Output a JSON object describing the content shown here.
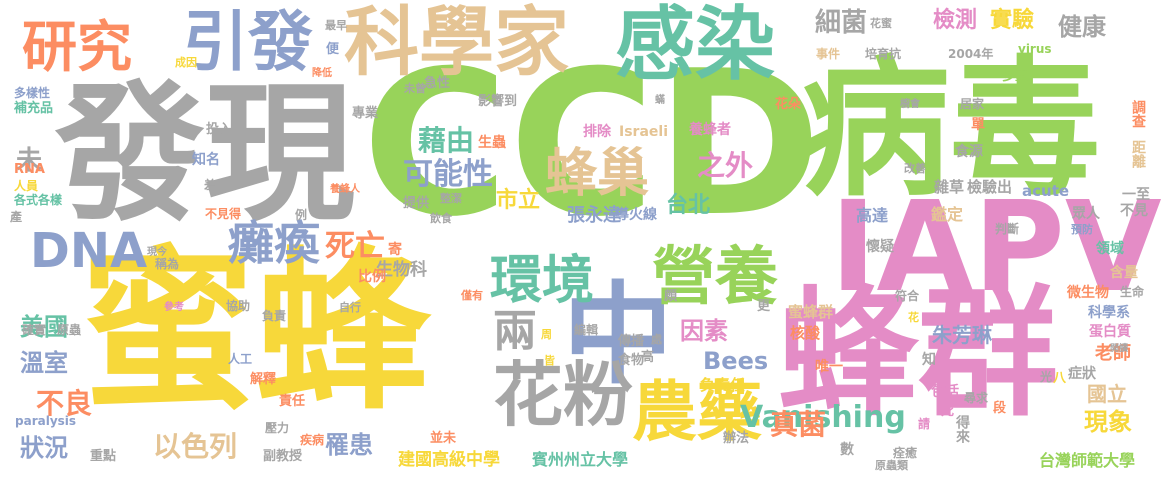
{
  "words": [
    {
      "text": "CCD",
      "color": "#98d35a"
    },
    {
      "text": "蜜蜂",
      "color": "#f7d83a"
    },
    {
      "text": "病毒",
      "color": "#98d35a"
    },
    {
      "text": "發現",
      "color": "#a6a6a6"
    },
    {
      "text": "蜂群",
      "color": "#e48cc6"
    },
    {
      "text": "中",
      "color": "#8da0cb"
    },
    {
      "text": "IAPV",
      "color": "#e48cc6"
    },
    {
      "text": "科學家",
      "color": "#e5c494"
    },
    {
      "text": "感染",
      "color": "#66c2a5"
    },
    {
      "text": "引發",
      "color": "#8da0cb"
    },
    {
      "text": "研究",
      "color": "#fc8d62"
    },
    {
      "text": "花粉",
      "color": "#a6a6a6"
    },
    {
      "text": "農藥",
      "color": "#f7d83a"
    },
    {
      "text": "營養",
      "color": "#98d35a"
    },
    {
      "text": "環境",
      "color": "#66c2a5"
    },
    {
      "text": "蜂巢",
      "color": "#e5c494"
    },
    {
      "text": "DNA",
      "color": "#8da0cb"
    },
    {
      "text": "癱瘓",
      "color": "#8da0cb"
    },
    {
      "text": "兩",
      "color": "#a6a6a6"
    },
    {
      "text": "藉由",
      "color": "#66c2a5"
    },
    {
      "text": "可能性",
      "color": "#8da0cb"
    },
    {
      "text": "之外",
      "color": "#e48cc6"
    },
    {
      "text": "死亡",
      "color": "#fc8d62"
    },
    {
      "text": "因素",
      "color": "#e48cc6"
    },
    {
      "text": "Bees",
      "color": "#8da0cb"
    },
    {
      "text": "Vanishing",
      "color": "#66c2a5"
    },
    {
      "text": "現象",
      "color": "#f7d83a"
    },
    {
      "text": "真菌",
      "color": "#fc8d62"
    },
    {
      "text": "罹患",
      "color": "#8da0cb"
    },
    {
      "text": "以色列",
      "color": "#e5c494"
    },
    {
      "text": "狀況",
      "color": "#8da0cb"
    },
    {
      "text": "不良",
      "color": "#fc8d62"
    },
    {
      "text": "溫室",
      "color": "#8da0cb"
    },
    {
      "text": "美國",
      "color": "#66c2a5"
    },
    {
      "text": "細菌",
      "color": "#a6a6a6"
    },
    {
      "text": "檢測",
      "color": "#e48cc6"
    },
    {
      "text": "實驗",
      "color": "#f7d83a"
    },
    {
      "text": "健康",
      "color": "#a6a6a6"
    },
    {
      "text": "台北",
      "color": "#66c2a5"
    },
    {
      "text": "市立",
      "color": "#f7d83a"
    },
    {
      "text": "張永達",
      "color": "#8da0cb"
    },
    {
      "text": "建國高級中學",
      "color": "#f7d83a"
    },
    {
      "text": "賓州州立大學",
      "color": "#66c2a5"
    },
    {
      "text": "台灣師範大學",
      "color": "#98d35a"
    },
    {
      "text": "朱芳琳",
      "color": "#8da0cb"
    },
    {
      "text": "生物科",
      "color": "#a6a6a6"
    },
    {
      "text": "老師",
      "color": "#fc8d62"
    },
    {
      "text": "國立",
      "color": "#e5c494"
    },
    {
      "text": "未",
      "color": "#a6a6a6"
    },
    {
      "text": "生蟲",
      "color": "#fc8d62"
    },
    {
      "text": "排除",
      "color": "#e48cc6"
    },
    {
      "text": "Israeli",
      "color": "#e5c494"
    },
    {
      "text": "養蜂者",
      "color": "#e48cc6"
    },
    {
      "text": "導火線",
      "color": "#8da0cb"
    },
    {
      "text": "蜜蜂群",
      "color": "#e5c494"
    },
    {
      "text": "核酸",
      "color": "#fc8d62"
    },
    {
      "text": "高達",
      "color": "#8da0cb"
    },
    {
      "text": "鑑定",
      "color": "#e5c494"
    },
    {
      "text": "雜草",
      "color": "#a6a6a6"
    },
    {
      "text": "檢驗出",
      "color": "#a6a6a6"
    },
    {
      "text": "acute",
      "color": "#8da0cb"
    },
    {
      "text": "virus",
      "color": "#98d35a"
    },
    {
      "text": "paralysis",
      "color": "#8da0cb"
    },
    {
      "text": "2004年",
      "color": "#a6a6a6"
    },
    {
      "text": "培育抗",
      "color": "#a6a6a6"
    },
    {
      "text": "花蜜",
      "color": "#a6a6a6"
    },
    {
      "text": "事件",
      "color": "#e5c494"
    },
    {
      "text": "多重",
      "color": "#98d35a"
    },
    {
      "text": "調查",
      "color": "#fc8d62"
    },
    {
      "text": "距離",
      "color": "#e5c494"
    },
    {
      "text": "單",
      "color": "#fc8d62"
    },
    {
      "text": "居家",
      "color": "#a6a6a6"
    },
    {
      "text": "櫥會",
      "color": "#a6a6a6"
    },
    {
      "text": "食源",
      "color": "#a6a6a6"
    },
    {
      "text": "改善",
      "color": "#a6a6a6"
    },
    {
      "text": "一至",
      "color": "#a6a6a6"
    },
    {
      "text": "不見",
      "color": "#a6a6a6"
    },
    {
      "text": "眾人",
      "color": "#a6a6a6"
    },
    {
      "text": "預防",
      "color": "#8da0cb"
    },
    {
      "text": "領域",
      "color": "#66c2a5"
    },
    {
      "text": "含量",
      "color": "#e5c494"
    },
    {
      "text": "微生物",
      "color": "#fc8d62"
    },
    {
      "text": "判斷",
      "color": "#a6a6a6"
    },
    {
      "text": "懷疑",
      "color": "#a6a6a6"
    },
    {
      "text": "符合",
      "color": "#a6a6a6"
    },
    {
      "text": "唯一",
      "color": "#fc8d62"
    },
    {
      "text": "知",
      "color": "#a6a6a6"
    },
    {
      "text": "花",
      "color": "#f7d83a"
    },
    {
      "text": "包括",
      "color": "#e48cc6"
    },
    {
      "text": "死",
      "color": "#e48cc6"
    },
    {
      "text": "得來",
      "color": "#a6a6a6"
    },
    {
      "text": "尋求",
      "color": "#a6a6a6"
    },
    {
      "text": "段",
      "color": "#fc8d62"
    },
    {
      "text": "光",
      "color": "#a6a6a6"
    },
    {
      "text": "八",
      "color": "#f7d83a"
    },
    {
      "text": "症狀",
      "color": "#a6a6a6"
    },
    {
      "text": "蛋白質",
      "color": "#e48cc6"
    },
    {
      "text": "科學系",
      "color": "#8da0cb"
    },
    {
      "text": "開讀",
      "color": "#a6a6a6"
    },
    {
      "text": "生命",
      "color": "#a6a6a6"
    },
    {
      "text": "痊癒",
      "color": "#a6a6a6"
    },
    {
      "text": "原蟲類",
      "color": "#a6a6a6"
    },
    {
      "text": "請",
      "color": "#e48cc6"
    },
    {
      "text": "數",
      "color": "#a6a6a6"
    },
    {
      "text": "辦法",
      "color": "#a6a6a6"
    },
    {
      "text": "負責任",
      "color": "#f7d83a"
    },
    {
      "text": "高",
      "color": "#a6a6a6"
    },
    {
      "text": "食物",
      "color": "#a6a6a6"
    },
    {
      "text": "傳播",
      "color": "#a6a6a6"
    },
    {
      "text": "處",
      "color": "#a6a6a6"
    },
    {
      "text": "頗",
      "color": "#a6a6a6"
    },
    {
      "text": "更",
      "color": "#a6a6a6"
    },
    {
      "text": "編輯",
      "color": "#a6a6a6"
    },
    {
      "text": "周",
      "color": "#f7d83a"
    },
    {
      "text": "皆",
      "color": "#f7d83a"
    },
    {
      "text": "並未",
      "color": "#fc8d62"
    },
    {
      "text": "疾病",
      "color": "#fc8d62"
    },
    {
      "text": "壓力",
      "color": "#a6a6a6"
    },
    {
      "text": "副教授",
      "color": "#a6a6a6"
    },
    {
      "text": "重點",
      "color": "#a6a6a6"
    },
    {
      "text": "責任",
      "color": "#fc8d62"
    },
    {
      "text": "解釋",
      "color": "#fc8d62"
    },
    {
      "text": "人工",
      "color": "#8da0cb"
    },
    {
      "text": "協助",
      "color": "#a6a6a6"
    },
    {
      "text": "原蟲",
      "color": "#a6a6a6"
    },
    {
      "text": "確實",
      "color": "#a6a6a6"
    },
    {
      "text": "參考",
      "color": "#e48cc6"
    },
    {
      "text": "負責",
      "color": "#a6a6a6"
    },
    {
      "text": "自行",
      "color": "#a6a6a6"
    },
    {
      "text": "比例",
      "color": "#fc8d62"
    },
    {
      "text": "僅有",
      "color": "#fc8d62"
    },
    {
      "text": "寄",
      "color": "#fc8d62"
    },
    {
      "text": "稱為",
      "color": "#a6a6a6"
    },
    {
      "text": "現今",
      "color": "#a6a6a6"
    },
    {
      "text": "例",
      "color": "#a6a6a6"
    },
    {
      "text": "不見得",
      "color": "#fc8d62"
    },
    {
      "text": "提供",
      "color": "#a6a6a6"
    },
    {
      "text": "飲食",
      "color": "#a6a6a6"
    },
    {
      "text": "整潔",
      "color": "#a6a6a6"
    },
    {
      "text": "養蜂人",
      "color": "#fc8d62"
    },
    {
      "text": "產",
      "color": "#a6a6a6"
    },
    {
      "text": "各式各樣",
      "color": "#66c2a5"
    },
    {
      "text": "人員",
      "color": "#f7d83a"
    },
    {
      "text": "知名",
      "color": "#8da0cb"
    },
    {
      "text": "RNA",
      "color": "#fc8d62"
    },
    {
      "text": "差",
      "color": "#a6a6a6"
    },
    {
      "text": "投入",
      "color": "#a6a6a6"
    },
    {
      "text": "專業",
      "color": "#a6a6a6"
    },
    {
      "text": "未曾",
      "color": "#a6a6a6"
    },
    {
      "text": "急性",
      "color": "#a6a6a6"
    },
    {
      "text": "影響到",
      "color": "#a6a6a6"
    },
    {
      "text": "補充品",
      "color": "#66c2a5"
    },
    {
      "text": "多樣性",
      "color": "#8da0cb"
    },
    {
      "text": "成因",
      "color": "#f7d83a"
    },
    {
      "text": "降低",
      "color": "#fc8d62"
    },
    {
      "text": "便",
      "color": "#8da0cb"
    },
    {
      "text": "最早",
      "color": "#a6a6a6"
    },
    {
      "text": "花朵",
      "color": "#fc8d62"
    },
    {
      "text": "蟎",
      "color": "#a6a6a6"
    }
  ]
}
